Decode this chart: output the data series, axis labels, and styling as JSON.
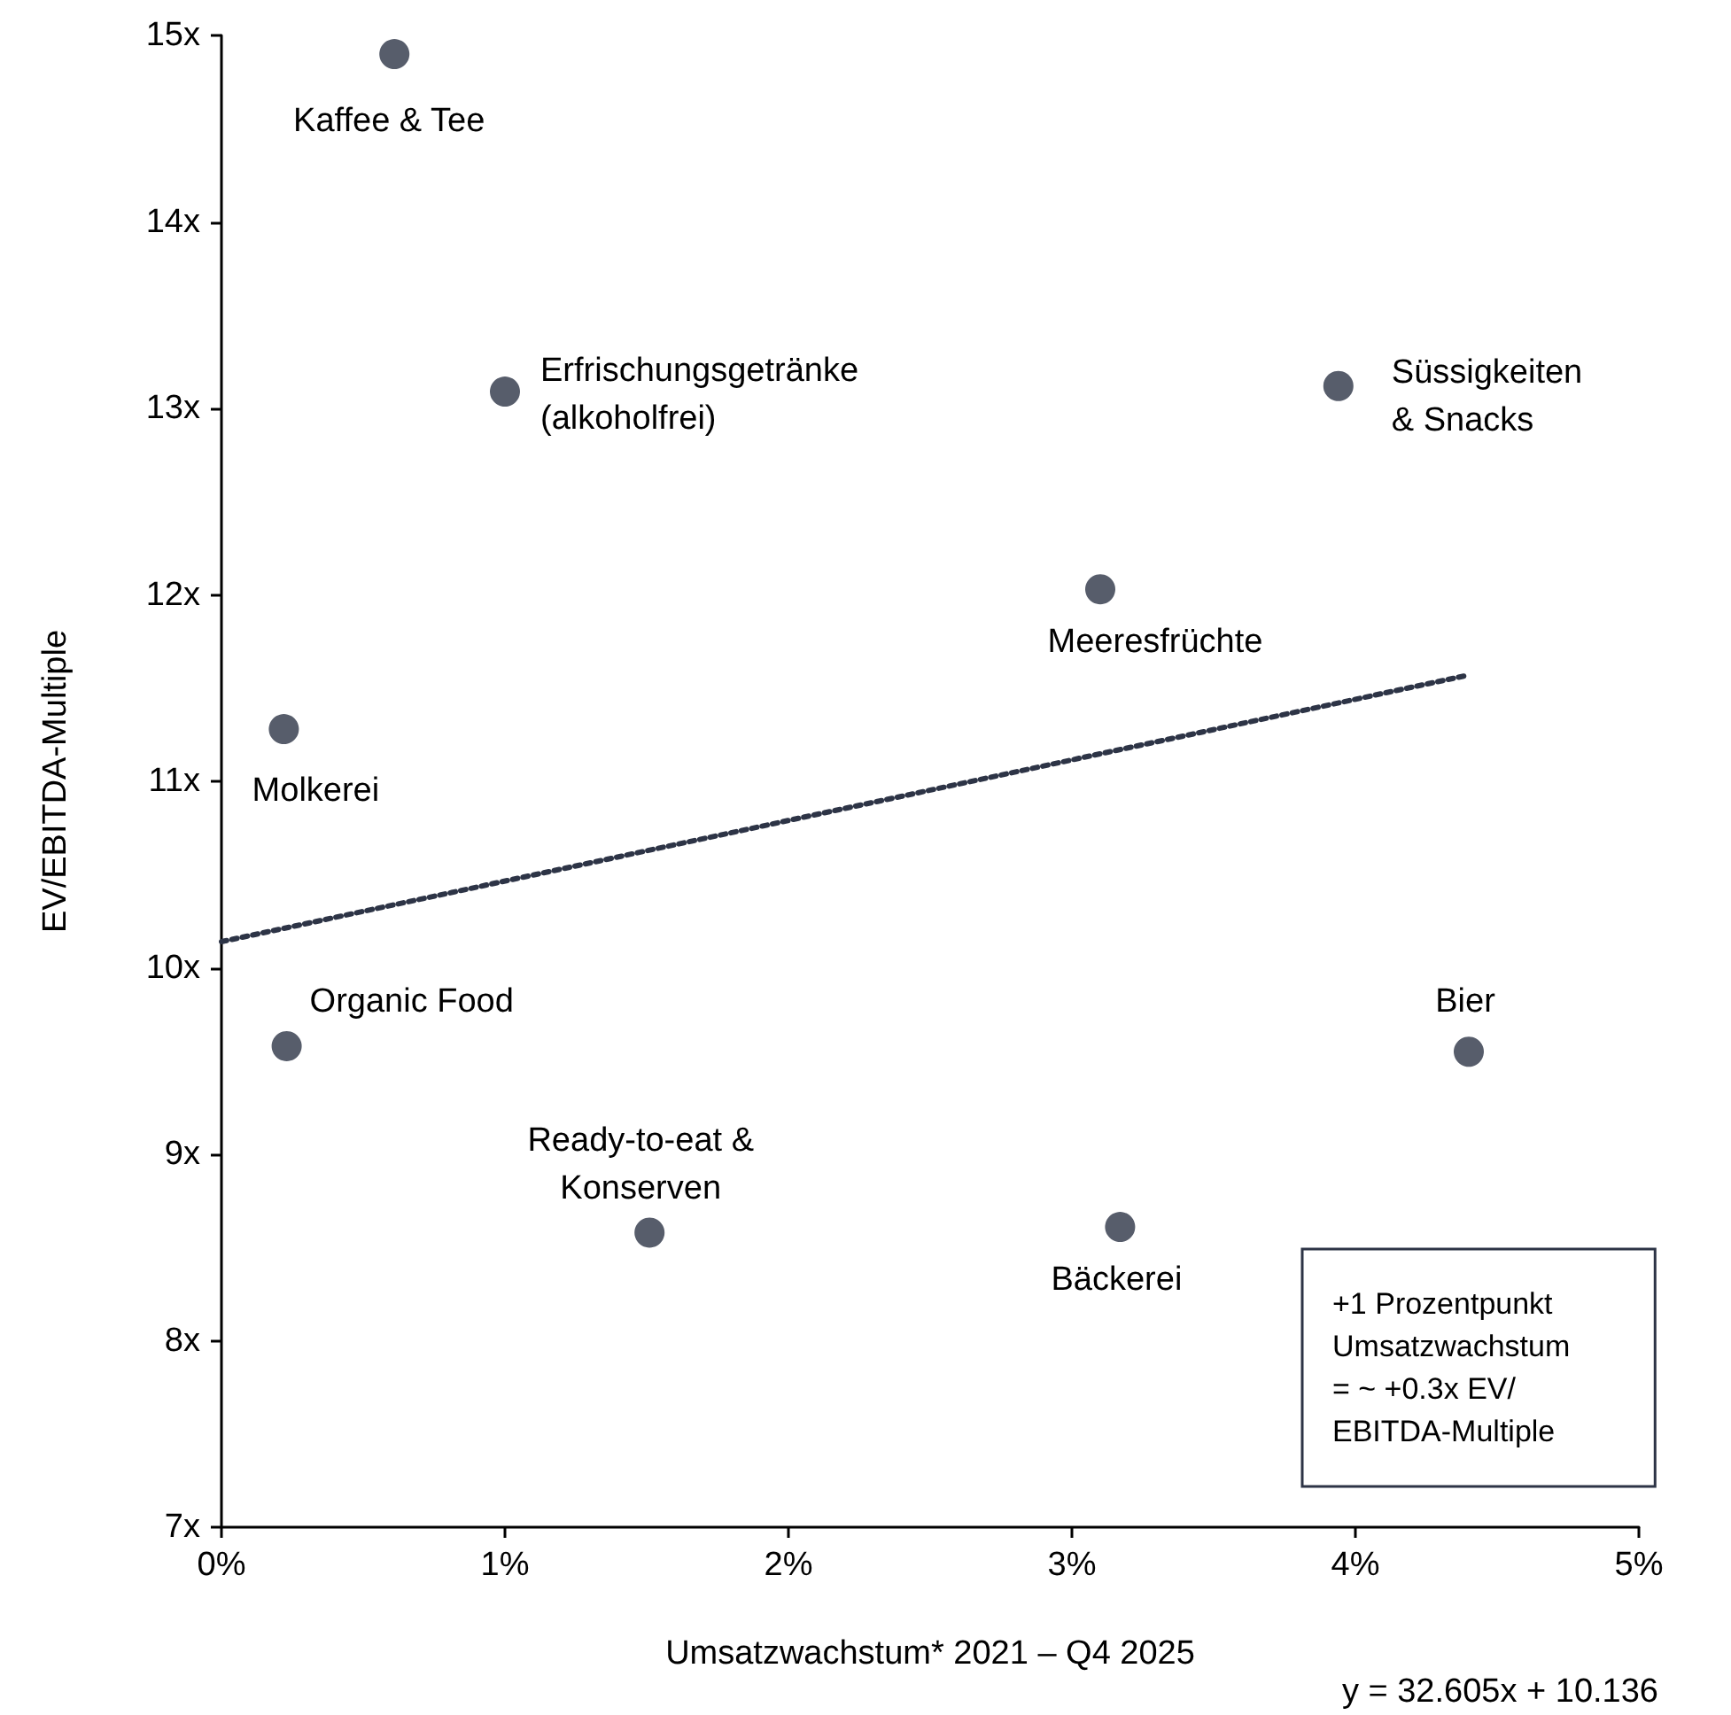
{
  "chart_data": {
    "type": "scatter",
    "xlabel": "Umsatzwachstum* 2021 – Q4 2025",
    "ylabel": "EV/EBITDA-Multiple",
    "xlim": [
      0,
      5
    ],
    "ylim": [
      7,
      15
    ],
    "xticks": [
      {
        "value": 0,
        "label": "0%"
      },
      {
        "value": 1,
        "label": "1%"
      },
      {
        "value": 2,
        "label": "2%"
      },
      {
        "value": 3,
        "label": "3%"
      },
      {
        "value": 4,
        "label": "4%"
      },
      {
        "value": 5,
        "label": "5%"
      }
    ],
    "yticks": [
      {
        "value": 7,
        "label": "7x"
      },
      {
        "value": 8,
        "label": "8x"
      },
      {
        "value": 9,
        "label": "9x"
      },
      {
        "value": 10,
        "label": "10x"
      },
      {
        "value": 11,
        "label": "11x"
      },
      {
        "value": 12,
        "label": "12x"
      },
      {
        "value": 13,
        "label": "13x"
      },
      {
        "value": 14,
        "label": "14x"
      },
      {
        "value": 15,
        "label": "15x"
      }
    ],
    "grid": false,
    "marker": "circle",
    "series": [
      {
        "color": "#2d3446",
        "x": [
          0.61,
          1.0,
          3.94,
          3.1,
          0.22,
          0.23,
          4.4,
          1.51,
          3.17
        ],
        "values": [
          14.9,
          13.09,
          13.12,
          12.03,
          11.28,
          9.58,
          9.55,
          8.58,
          8.61
        ]
      },
      {
        "type": "line",
        "color": "#2d3446",
        "line_style": "dotted",
        "marker": "none",
        "x": [
          0,
          4.4
        ],
        "values": [
          10.14,
          11.57
        ]
      }
    ],
    "annotations": [
      {
        "text": "Kaffee & Tee",
        "x": 0.61,
        "y": 14.9
      },
      {
        "text": "Erfrischungsgetränke\n(alkoholfrei)",
        "x": 1.0,
        "y": 13.09
      },
      {
        "text": "Süssigkeiten\n& Snacks",
        "x": 3.94,
        "y": 13.12
      },
      {
        "text": "Meeresfrüchte",
        "x": 3.1,
        "y": 12.03
      },
      {
        "text": "Molkerei",
        "x": 0.22,
        "y": 11.28
      },
      {
        "text": "Organic Food",
        "x": 0.23,
        "y": 9.58
      },
      {
        "text": "Bier",
        "x": 4.4,
        "y": 9.55
      },
      {
        "text": "Ready-to-eat &\nKonserven",
        "x": 1.51,
        "y": 8.58
      },
      {
        "text": "Bäckerei",
        "x": 3.17,
        "y": 8.61
      },
      "+1 Prozentpunkt\nUmsatzwachstum\n= ~ +0.3x EV/\nEBITDA-Multiple",
      "y = 32.605x + 10.136"
    ]
  }
}
